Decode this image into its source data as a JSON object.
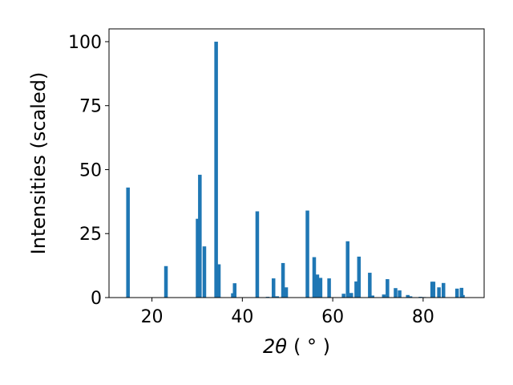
{
  "chart_data": {
    "type": "bar",
    "title": "",
    "xlabel_main": "2θ",
    "xlabel_unit": "( ° )",
    "ylabel": "Intensities (scaled)",
    "xlim": [
      10.5,
      93.5
    ],
    "ylim": [
      0,
      105
    ],
    "x_ticks": [
      20,
      40,
      60,
      80
    ],
    "y_ticks": [
      0,
      25,
      50,
      75,
      100
    ],
    "grid": false,
    "bar_color": "#1f77b4",
    "bar_width": 0.8,
    "x": [
      14.7,
      23.1,
      30.1,
      30.6,
      31.6,
      34.2,
      34.8,
      37.9,
      38.3,
      43.3,
      45.6,
      46.9,
      47.7,
      49.0,
      49.7,
      54.4,
      55.9,
      56.6,
      57.3,
      59.2,
      62.4,
      63.3,
      64.1,
      65.2,
      65.8,
      68.2,
      68.8,
      71.3,
      72.1,
      73.9,
      74.8,
      76.6,
      77.2,
      79.4,
      80.2,
      82.0,
      82.3,
      83.5,
      84.5,
      87.5,
      88.5,
      88.8
    ],
    "values": [
      43,
      12.3,
      30.8,
      48,
      20,
      100,
      13,
      1.7,
      5.6,
      33.7,
      0.3,
      7.5,
      0.5,
      13.5,
      4,
      34,
      15.8,
      9,
      7.7,
      7.5,
      1.5,
      22,
      1.8,
      6.3,
      16,
      9.7,
      0.8,
      1.2,
      7.2,
      3.7,
      2.8,
      1.0,
      0.5,
      0.3,
      0.2,
      6.2,
      6.2,
      4,
      5.7,
      3.5,
      3.8,
      1.0
    ]
  }
}
